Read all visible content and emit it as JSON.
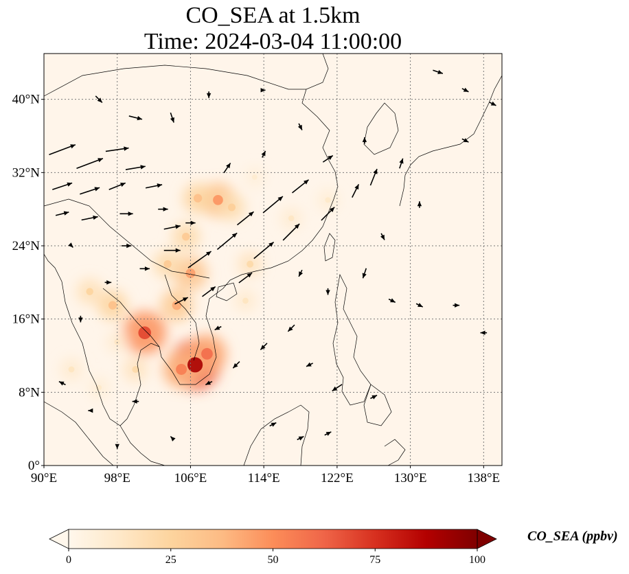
{
  "title": {
    "line1": "CO_SEA at 1.5km",
    "line2": "Time: 2024-03-04 11:00:00"
  },
  "map": {
    "lon_range": [
      90,
      140
    ],
    "lat_range": [
      0,
      45
    ],
    "lon_ticks": [
      {
        "value": 90,
        "label": "90°E"
      },
      {
        "value": 98,
        "label": "98°E"
      },
      {
        "value": 106,
        "label": "106°E"
      },
      {
        "value": 114,
        "label": "114°E"
      },
      {
        "value": 122,
        "label": "122°E"
      },
      {
        "value": 130,
        "label": "130°E"
      },
      {
        "value": 138,
        "label": "138°E"
      }
    ],
    "lat_ticks": [
      {
        "value": 0,
        "label": "0°"
      },
      {
        "value": 8,
        "label": "8°N"
      },
      {
        "value": 16,
        "label": "16°N"
      },
      {
        "value": 24,
        "label": "24°N"
      },
      {
        "value": 32,
        "label": "32°N"
      },
      {
        "value": 40,
        "label": "40°N"
      }
    ],
    "gridlines": true,
    "background_color": "#fff5ea",
    "coastline_color": "#000000"
  },
  "colorbar": {
    "label": "CO_SEA (ppbv)",
    "min": 0,
    "max": 100,
    "extend": "both",
    "ticks": [
      {
        "value": 0,
        "label": "0"
      },
      {
        "value": 25,
        "label": "25"
      },
      {
        "value": 50,
        "label": "50"
      },
      {
        "value": 75,
        "label": "75"
      },
      {
        "value": 100,
        "label": "100"
      }
    ],
    "colormap": "OrRd",
    "stops": [
      "#fff7ec",
      "#fee8c8",
      "#fdd49e",
      "#fdbb84",
      "#fc8d59",
      "#ef6548",
      "#d7301f",
      "#b30000",
      "#7f0000"
    ]
  },
  "chart_data": {
    "type": "heatmap",
    "variable": "CO_SEA",
    "units": "ppbv",
    "altitude": "1.5km",
    "time": "2024-03-04 11:00:00",
    "hotspots": [
      {
        "lon": 106.5,
        "lat": 11.0,
        "value": 90
      },
      {
        "lon": 105.0,
        "lat": 10.5,
        "value": 55
      },
      {
        "lon": 107.8,
        "lat": 12.2,
        "value": 60
      },
      {
        "lon": 101.0,
        "lat": 14.5,
        "value": 70
      },
      {
        "lon": 104.5,
        "lat": 17.5,
        "value": 42
      },
      {
        "lon": 106.0,
        "lat": 21.0,
        "value": 45
      },
      {
        "lon": 103.5,
        "lat": 22.0,
        "value": 30
      },
      {
        "lon": 109.0,
        "lat": 29.0,
        "value": 48
      },
      {
        "lon": 106.8,
        "lat": 29.2,
        "value": 35
      },
      {
        "lon": 110.5,
        "lat": 28.2,
        "value": 28
      },
      {
        "lon": 105.5,
        "lat": 25.0,
        "value": 30
      },
      {
        "lon": 97.5,
        "lat": 17.5,
        "value": 35
      },
      {
        "lon": 95.0,
        "lat": 19.0,
        "value": 25
      },
      {
        "lon": 100.0,
        "lat": 10.5,
        "value": 22
      },
      {
        "lon": 112.5,
        "lat": 22.0,
        "value": 22
      },
      {
        "lon": 112.0,
        "lat": 18.0,
        "value": 15
      },
      {
        "lon": 93.0,
        "lat": 10.5,
        "value": 15
      },
      {
        "lon": 96.0,
        "lat": 8.5,
        "value": 12
      },
      {
        "lon": 117.0,
        "lat": 27.0,
        "value": 14
      },
      {
        "lon": 121.0,
        "lat": 29.0,
        "value": 12
      },
      {
        "lon": 113.0,
        "lat": 31.5,
        "value": 10
      },
      {
        "lon": 98.0,
        "lat": 13.5,
        "value": 14
      }
    ],
    "wind_vectors": [
      {
        "lon": 92,
        "lat": 34.5,
        "u": 8,
        "v": 3
      },
      {
        "lon": 95,
        "lat": 33.0,
        "u": 8,
        "v": 3
      },
      {
        "lon": 98,
        "lat": 34.5,
        "u": 7,
        "v": 1
      },
      {
        "lon": 100,
        "lat": 32.5,
        "u": 6,
        "v": 1
      },
      {
        "lon": 92,
        "lat": 30.5,
        "u": 6,
        "v": 2
      },
      {
        "lon": 95,
        "lat": 30.0,
        "u": 6,
        "v": 2
      },
      {
        "lon": 98,
        "lat": 30.5,
        "u": 5,
        "v": 2
      },
      {
        "lon": 102,
        "lat": 30.5,
        "u": 5,
        "v": 1
      },
      {
        "lon": 92,
        "lat": 27.5,
        "u": 4,
        "v": 1
      },
      {
        "lon": 95,
        "lat": 27.0,
        "u": 5,
        "v": 1
      },
      {
        "lon": 99,
        "lat": 27.5,
        "u": 4,
        "v": 0
      },
      {
        "lon": 104,
        "lat": 26.0,
        "u": 5,
        "v": 1
      },
      {
        "lon": 104,
        "lat": 23.5,
        "u": 5,
        "v": 0
      },
      {
        "lon": 107,
        "lat": 22.5,
        "u": 7,
        "v": 5
      },
      {
        "lon": 110,
        "lat": 24.5,
        "u": 6,
        "v": 5
      },
      {
        "lon": 112,
        "lat": 27.0,
        "u": 5,
        "v": 4
      },
      {
        "lon": 115,
        "lat": 28.5,
        "u": 6,
        "v": 5
      },
      {
        "lon": 118,
        "lat": 30.5,
        "u": 5,
        "v": 4
      },
      {
        "lon": 114,
        "lat": 23.5,
        "u": 6,
        "v": 5
      },
      {
        "lon": 117,
        "lat": 25.5,
        "u": 5,
        "v": 5
      },
      {
        "lon": 121,
        "lat": 27.5,
        "u": 4,
        "v": 4
      },
      {
        "lon": 124,
        "lat": 30.0,
        "u": 2,
        "v": 4
      },
      {
        "lon": 126,
        "lat": 31.5,
        "u": 2,
        "v": 5
      },
      {
        "lon": 112,
        "lat": 20.5,
        "u": 4,
        "v": 3
      },
      {
        "lon": 108,
        "lat": 19.0,
        "u": 4,
        "v": 3
      },
      {
        "lon": 105,
        "lat": 18.0,
        "u": 4,
        "v": 2
      },
      {
        "lon": 101,
        "lat": 21.5,
        "u": 3,
        "v": 0
      },
      {
        "lon": 99,
        "lat": 24.0,
        "u": 3,
        "v": 0
      },
      {
        "lon": 97,
        "lat": 20.0,
        "u": 2,
        "v": 0
      },
      {
        "lon": 93,
        "lat": 24.0,
        "u": 1,
        "v": -1
      },
      {
        "lon": 100,
        "lat": 38.0,
        "u": 4,
        "v": -1
      },
      {
        "lon": 96,
        "lat": 40.0,
        "u": 2,
        "v": -2
      },
      {
        "lon": 104,
        "lat": 38.0,
        "u": 1,
        "v": -3
      },
      {
        "lon": 108,
        "lat": 40.5,
        "u": 0,
        "v": -2
      },
      {
        "lon": 114,
        "lat": 41.0,
        "u": 1,
        "v": 0
      },
      {
        "lon": 118,
        "lat": 37.0,
        "u": 1,
        "v": -2
      },
      {
        "lon": 125,
        "lat": 35.5,
        "u": 0,
        "v": 2
      },
      {
        "lon": 129,
        "lat": 33.0,
        "u": 1,
        "v": 3
      },
      {
        "lon": 133,
        "lat": 43.0,
        "u": 3,
        "v": -1
      },
      {
        "lon": 136,
        "lat": 41.0,
        "u": 2,
        "v": -1
      },
      {
        "lon": 139,
        "lat": 39.5,
        "u": 2,
        "v": -1
      },
      {
        "lon": 136,
        "lat": 35.5,
        "u": 2,
        "v": -1
      },
      {
        "lon": 131,
        "lat": 28.5,
        "u": 0,
        "v": 2
      },
      {
        "lon": 127,
        "lat": 25.0,
        "u": 1,
        "v": -2
      },
      {
        "lon": 125,
        "lat": 21.0,
        "u": -1,
        "v": -3
      },
      {
        "lon": 128,
        "lat": 18.0,
        "u": 2,
        "v": -1
      },
      {
        "lon": 131,
        "lat": 17.5,
        "u": 2,
        "v": -1
      },
      {
        "lon": 135,
        "lat": 17.5,
        "u": 2,
        "v": 0
      },
      {
        "lon": 138,
        "lat": 14.5,
        "u": -2,
        "v": 0
      },
      {
        "lon": 121,
        "lat": 19.0,
        "u": 0,
        "v": -2
      },
      {
        "lon": 118,
        "lat": 21.0,
        "u": -1,
        "v": -2
      },
      {
        "lon": 117,
        "lat": 15.0,
        "u": -2,
        "v": -2
      },
      {
        "lon": 114,
        "lat": 13.0,
        "u": -2,
        "v": -2
      },
      {
        "lon": 111,
        "lat": 11.0,
        "u": -2,
        "v": -2
      },
      {
        "lon": 108,
        "lat": 9.0,
        "u": -2,
        "v": -1
      },
      {
        "lon": 119,
        "lat": 11.0,
        "u": -2,
        "v": -1
      },
      {
        "lon": 122,
        "lat": 8.5,
        "u": -3,
        "v": -2
      },
      {
        "lon": 126,
        "lat": 7.5,
        "u": 2,
        "v": 1
      },
      {
        "lon": 118,
        "lat": 3.0,
        "u": 2,
        "v": 1
      },
      {
        "lon": 115,
        "lat": 4.5,
        "u": 2,
        "v": 1
      },
      {
        "lon": 121,
        "lat": 3.5,
        "u": 2,
        "v": 1
      },
      {
        "lon": 100,
        "lat": 7.0,
        "u": -2,
        "v": 0
      },
      {
        "lon": 95,
        "lat": 6.0,
        "u": -1,
        "v": 0
      },
      {
        "lon": 92,
        "lat": 9.0,
        "u": -2,
        "v": 1
      },
      {
        "lon": 104,
        "lat": 3.0,
        "u": -1,
        "v": 1
      },
      {
        "lon": 98,
        "lat": 2.0,
        "u": 0,
        "v": -1
      },
      {
        "lon": 94,
        "lat": 16.0,
        "u": 0,
        "v": -2
      },
      {
        "lon": 109,
        "lat": 15.0,
        "u": -2,
        "v": -1
      },
      {
        "lon": 106,
        "lat": 26.5,
        "u": 3,
        "v": 0
      },
      {
        "lon": 103,
        "lat": 28.0,
        "u": 3,
        "v": 0
      },
      {
        "lon": 110,
        "lat": 32.5,
        "u": 2,
        "v": 3
      },
      {
        "lon": 114,
        "lat": 34.0,
        "u": 1,
        "v": 2
      },
      {
        "lon": 121,
        "lat": 33.5,
        "u": 3,
        "v": 2
      }
    ]
  }
}
